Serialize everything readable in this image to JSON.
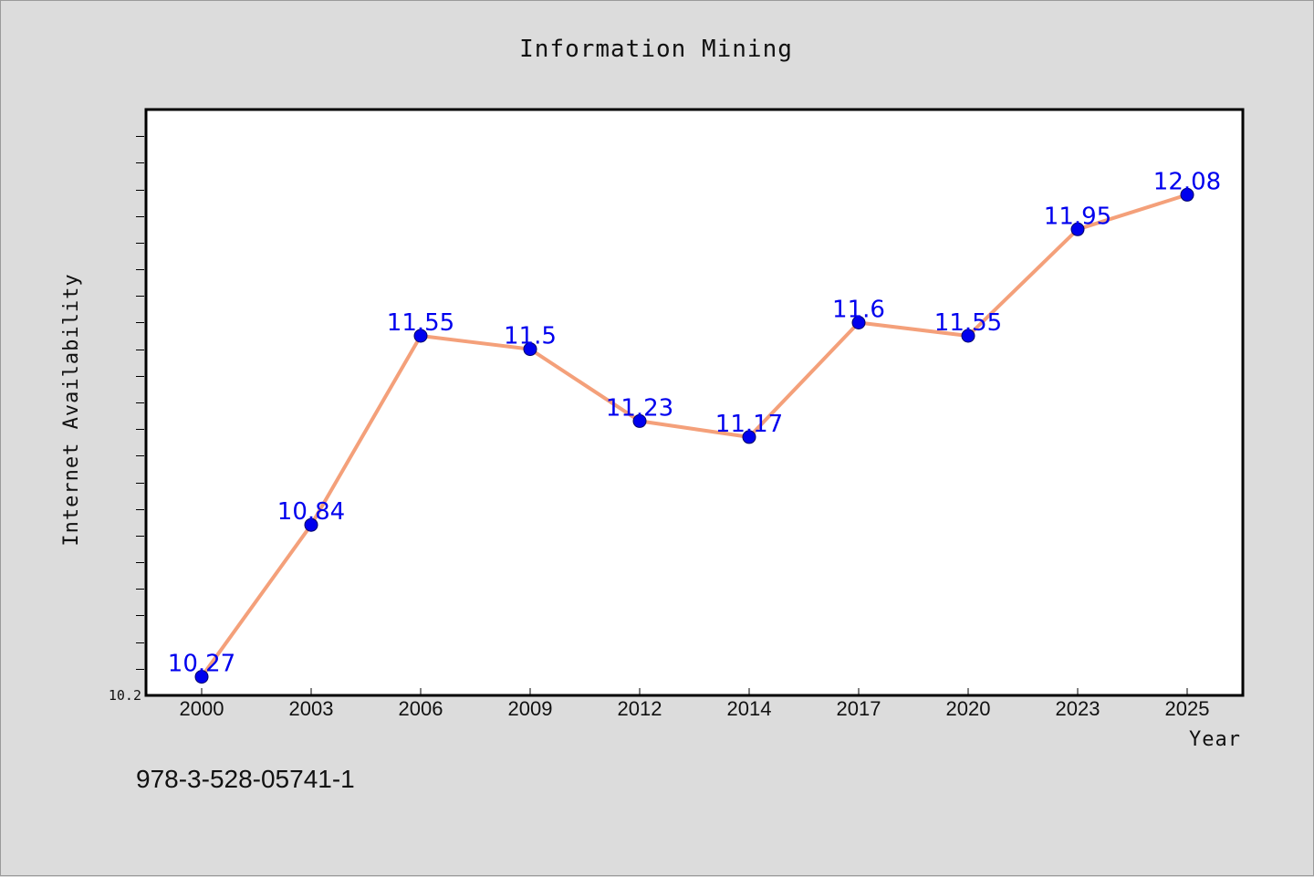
{
  "chart_data": {
    "type": "line",
    "title": "Information Mining",
    "xlabel": "Year",
    "ylabel": "Internet Availability",
    "categories": [
      "2000",
      "2003",
      "2006",
      "2009",
      "2012",
      "2014",
      "2017",
      "2020",
      "2023",
      "2025"
    ],
    "series": [
      {
        "values": [
          10.27,
          10.84,
          11.55,
          11.5,
          11.23,
          11.17,
          11.6,
          11.55,
          11.95,
          12.08
        ],
        "data_labels": [
          "10.27",
          "10.84",
          "11.55",
          "11.5",
          "11.23",
          "11.17",
          "11.6",
          "11.55",
          "11.95",
          "12.08"
        ]
      }
    ],
    "ylim": [
      10.2,
      12.4
    ],
    "y_tick_labels": [
      "10.2"
    ],
    "grid": false,
    "colors": {
      "line": "#f4a07a",
      "marker": "#0000ee",
      "label": "#0000ee"
    }
  },
  "footer": {
    "isbn": "978-3-528-05741-1"
  }
}
